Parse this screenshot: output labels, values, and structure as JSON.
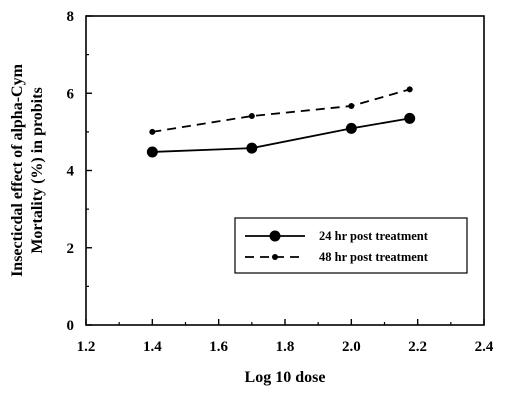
{
  "chart_data": {
    "type": "line",
    "title": "",
    "xlabel": "Log 10 dose",
    "ylabel_lines": [
      "Insecticdal effect of alpha-Cym",
      "Mortality (%) in probits"
    ],
    "xlim": [
      1.2,
      2.4
    ],
    "ylim": [
      0,
      8
    ],
    "x_ticks": [
      "1.2",
      "1.4",
      "1.6",
      "1.8",
      "2.0",
      "2.2",
      "2.4"
    ],
    "y_ticks": [
      "0",
      "2",
      "4",
      "6",
      "8"
    ],
    "grid": false,
    "legend_position": "lower-right",
    "series": [
      {
        "name": "24 hr post treatment",
        "style": "solid",
        "marker": "large-circle",
        "color": "#000000",
        "x": [
          1.4,
          1.7,
          2.0,
          2.176
        ],
        "y": [
          4.48,
          4.58,
          5.09,
          5.35
        ]
      },
      {
        "name": "48 hr post treatment",
        "style": "dashed",
        "marker": "small-circle",
        "color": "#000000",
        "x": [
          1.4,
          1.7,
          2.0,
          2.176
        ],
        "y": [
          5.0,
          5.41,
          5.67,
          6.1
        ]
      }
    ]
  }
}
